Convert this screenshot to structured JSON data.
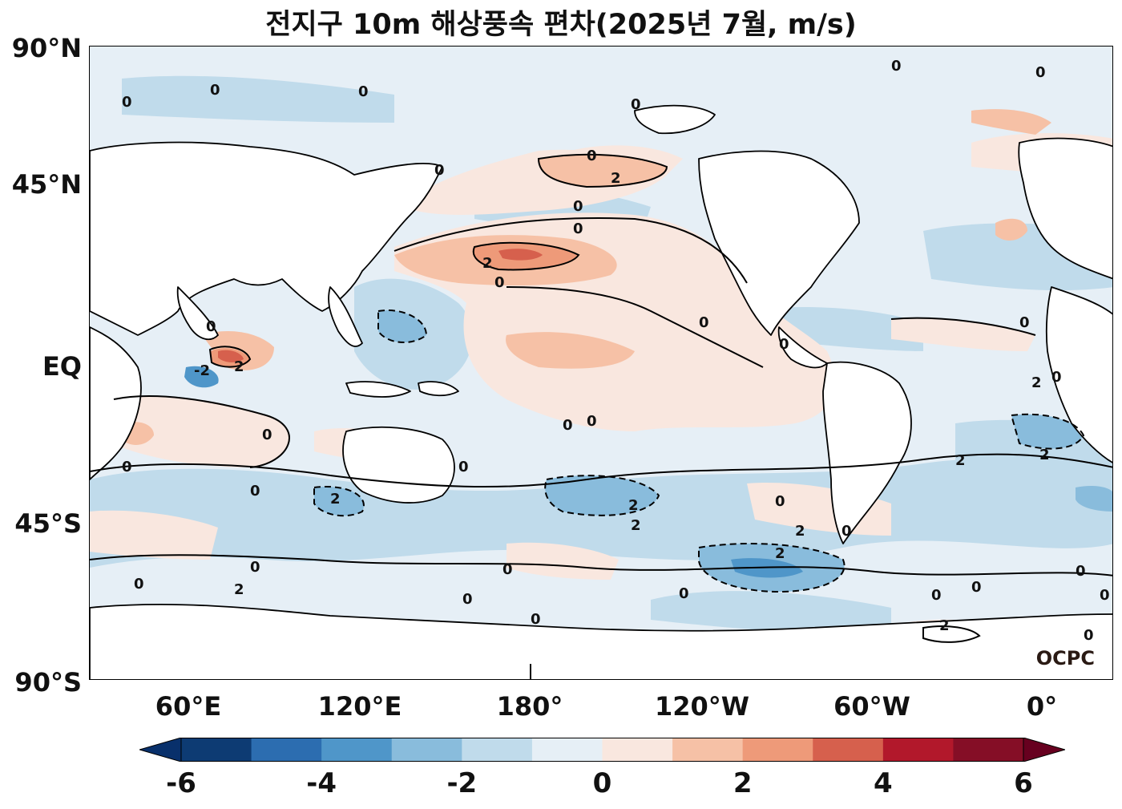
{
  "title": "전지구 10m 해상풍속 편차(2025년 7월, m/s)",
  "lat_labels": [
    "90°N",
    "45°N",
    "EQ",
    "45°S",
    "90°S"
  ],
  "lon_labels": [
    "60°E",
    "120°E",
    "180°",
    "120°W",
    "60°W",
    "0°"
  ],
  "logo": "OCPC",
  "colorbar": {
    "min": -6,
    "max": 6,
    "step": 1,
    "tick_labels": [
      "-6",
      "-4",
      "-2",
      "0",
      "2",
      "4",
      "6"
    ],
    "colors": [
      "#0d3b73",
      "#2c6db0",
      "#4f96c9",
      "#89bcdc",
      "#c0dbeb",
      "#e6eff6",
      "#f9e7df",
      "#f6c1a6",
      "#ee9a79",
      "#d6604d",
      "#b2182b",
      "#850e26"
    ],
    "extend_low": "#08306b",
    "extend_high": "#67001f"
  },
  "contour_labels": [
    "0",
    "2",
    "-2"
  ],
  "colors": {
    "land": "#ffffff",
    "ocean_near_zero": "#e6eff6",
    "positive_anomaly": "#f6c1a6",
    "negative_anomaly": "#89bcdc",
    "coastline": "#000000"
  }
}
